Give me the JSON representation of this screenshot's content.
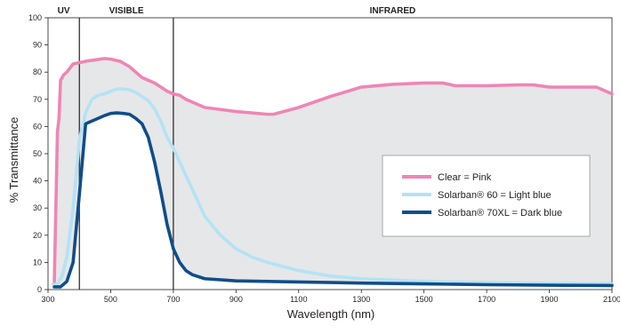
{
  "chart_data": {
    "type": "line",
    "xlabel": "Wavelength (nm)",
    "ylabel": "% Transmittance",
    "xlim": [
      300,
      2100
    ],
    "ylim": [
      0,
      100
    ],
    "x_ticks": [
      "300",
      "500",
      "700",
      "900",
      "1100",
      "1300",
      "1500",
      "1700",
      "1900",
      "2100"
    ],
    "y_ticks": [
      "0",
      "10",
      "20",
      "30",
      "40",
      "50",
      "60",
      "70",
      "80",
      "90",
      "100"
    ],
    "regions": [
      {
        "label": "UV",
        "from": 300,
        "to": 400
      },
      {
        "label": "VISIBLE",
        "from": 400,
        "to": 700
      },
      {
        "label": "INFRARED",
        "from": 700,
        "to": 2100
      }
    ],
    "shading_color": "#e6e7e8",
    "series": [
      {
        "name": "Clear = Pink",
        "color": "#ee86b5",
        "x": [
          320,
          325,
          330,
          335,
          340,
          350,
          360,
          380,
          400,
          420,
          450,
          480,
          500,
          530,
          560,
          600,
          640,
          680,
          700,
          720,
          740,
          760,
          800,
          900,
          1000,
          1020,
          1100,
          1200,
          1300,
          1400,
          1500,
          1560,
          1600,
          1700,
          1800,
          1850,
          1900,
          2000,
          2050,
          2100
        ],
        "y": [
          3,
          30,
          58,
          63,
          77,
          79,
          80,
          83,
          83.5,
          84,
          84.5,
          85,
          84.8,
          84,
          82,
          78,
          76,
          73,
          72,
          71.5,
          70,
          69,
          67,
          65.5,
          64.5,
          64.5,
          67,
          71,
          74.5,
          75.5,
          76,
          76,
          75,
          75,
          75.3,
          75.3,
          74.5,
          74.5,
          74.5,
          72
        ]
      },
      {
        "name": "Solarban® 60 = Light blue",
        "color": "#b3e3f4",
        "x": [
          315,
          330,
          345,
          360,
          380,
          400,
          420,
          440,
          460,
          480,
          500,
          520,
          540,
          560,
          580,
          600,
          620,
          640,
          660,
          680,
          700,
          720,
          740,
          760,
          780,
          800,
          850,
          900,
          950,
          1000,
          1100,
          1200,
          1300,
          1400,
          1500,
          1600,
          1700,
          1800,
          1900,
          2000,
          2100
        ],
        "y": [
          2,
          2,
          5,
          12,
          30,
          55,
          65,
          70,
          71.5,
          72,
          73,
          73.8,
          73.8,
          73.5,
          72.5,
          71,
          69.5,
          66.5,
          62,
          56,
          52,
          47,
          42,
          37,
          32,
          27,
          20,
          15,
          12,
          10,
          7,
          5,
          4,
          3.5,
          3,
          2.8,
          2.6,
          2.4,
          2.3,
          2.2,
          2.1
        ]
      },
      {
        "name": "Solarban® 70XL = Dark blue",
        "color": "#0f4d8a",
        "x": [
          320,
          340,
          360,
          380,
          400,
          420,
          440,
          460,
          480,
          500,
          520,
          540,
          560,
          580,
          600,
          620,
          640,
          660,
          680,
          700,
          720,
          740,
          760,
          800,
          900,
          1000,
          1100,
          1300,
          1500,
          1700,
          1900,
          2100
        ],
        "y": [
          1,
          1,
          3,
          10,
          35,
          61,
          62,
          63,
          64,
          64.8,
          65,
          64.8,
          64.5,
          63,
          61,
          56,
          47,
          36,
          24,
          15,
          10,
          7,
          5.5,
          4,
          3.2,
          3,
          2.8,
          2.4,
          2.1,
          1.8,
          1.6,
          1.5
        ]
      }
    ],
    "legend": {
      "placement": "right-center"
    }
  }
}
